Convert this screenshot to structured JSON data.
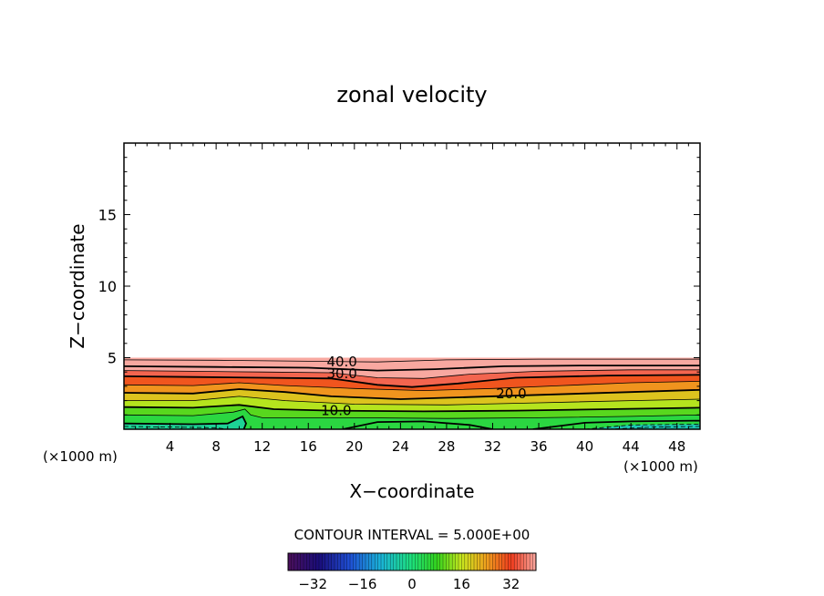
{
  "chart_data": {
    "type": "contour",
    "title": "zonal velocity",
    "xlabel": "X−coordinate",
    "ylabel": "Z−coordinate",
    "x_unit_label": "(×1000 m)",
    "y_unit_label": "(×1000 m)",
    "xlim": [
      0,
      50
    ],
    "ylim": [
      0,
      20
    ],
    "x_ticks": [
      4,
      8,
      12,
      16,
      20,
      24,
      28,
      32,
      36,
      40,
      44,
      48
    ],
    "y_ticks": [
      5,
      10,
      15
    ],
    "grid": false,
    "contour_interval_text": "CONTOUR INTERVAL = 5.000E+00",
    "contour_labels": [
      {
        "text": "40.0",
        "x": 17.6,
        "z": 4.7
      },
      {
        "text": "30.0",
        "x": 17.6,
        "z": 3.9
      },
      {
        "text": "20.0",
        "x": 32.3,
        "z": 2.5
      },
      {
        "text": "10.0",
        "x": 17.1,
        "z": 1.3
      }
    ],
    "contour_levels": [
      {
        "value": 45,
        "points": [
          [
            0,
            4.85
          ],
          [
            8,
            4.82
          ],
          [
            16,
            4.75
          ],
          [
            22,
            4.7
          ],
          [
            28,
            4.85
          ],
          [
            36,
            4.9
          ],
          [
            44,
            4.9
          ],
          [
            50,
            4.9
          ]
        ]
      },
      {
        "value": 40,
        "points": [
          [
            0,
            4.4
          ],
          [
            8,
            4.35
          ],
          [
            16,
            4.3
          ],
          [
            22,
            4.1
          ],
          [
            27,
            4.2
          ],
          [
            33,
            4.4
          ],
          [
            40,
            4.45
          ],
          [
            50,
            4.45
          ]
        ]
      },
      {
        "value": 35,
        "points": [
          [
            0,
            4.1
          ],
          [
            6,
            4.05
          ],
          [
            12,
            4.0
          ],
          [
            18,
            3.95
          ],
          [
            22,
            3.6
          ],
          [
            26,
            3.55
          ],
          [
            30,
            3.85
          ],
          [
            36,
            4.05
          ],
          [
            44,
            4.15
          ],
          [
            50,
            4.15
          ]
        ]
      },
      {
        "value": 30,
        "points": [
          [
            0,
            3.7
          ],
          [
            6,
            3.65
          ],
          [
            12,
            3.6
          ],
          [
            18,
            3.55
          ],
          [
            22,
            3.1
          ],
          [
            25,
            2.95
          ],
          [
            29,
            3.2
          ],
          [
            34,
            3.6
          ],
          [
            42,
            3.75
          ],
          [
            50,
            3.8
          ]
        ]
      },
      {
        "value": 25,
        "points": [
          [
            0,
            3.1
          ],
          [
            6,
            3.05
          ],
          [
            10,
            3.25
          ],
          [
            14,
            3.05
          ],
          [
            20,
            2.85
          ],
          [
            26,
            2.7
          ],
          [
            32,
            2.85
          ],
          [
            38,
            3.05
          ],
          [
            44,
            3.25
          ],
          [
            50,
            3.35
          ]
        ]
      },
      {
        "value": 20,
        "points": [
          [
            0,
            2.55
          ],
          [
            6,
            2.5
          ],
          [
            10,
            2.8
          ],
          [
            14,
            2.6
          ],
          [
            18,
            2.3
          ],
          [
            24,
            2.1
          ],
          [
            30,
            2.25
          ],
          [
            36,
            2.4
          ],
          [
            44,
            2.6
          ],
          [
            50,
            2.75
          ]
        ]
      },
      {
        "value": 15,
        "points": [
          [
            0,
            2.0
          ],
          [
            6,
            2.0
          ],
          [
            10,
            2.3
          ],
          [
            14,
            2.0
          ],
          [
            20,
            1.75
          ],
          [
            28,
            1.7
          ],
          [
            36,
            1.85
          ],
          [
            44,
            2.0
          ],
          [
            50,
            2.1
          ]
        ]
      },
      {
        "value": 10,
        "points": [
          [
            0,
            1.55
          ],
          [
            6,
            1.5
          ],
          [
            10,
            1.7
          ],
          [
            13,
            1.4
          ],
          [
            18,
            1.3
          ],
          [
            26,
            1.25
          ],
          [
            34,
            1.3
          ],
          [
            42,
            1.4
          ],
          [
            50,
            1.5
          ]
        ]
      },
      {
        "value": 5,
        "points": [
          [
            0,
            1.0
          ],
          [
            6,
            0.95
          ],
          [
            9.5,
            1.2
          ],
          [
            10.5,
            1.4
          ],
          [
            11,
            1.0
          ],
          [
            12,
            0.8
          ],
          [
            20,
            0.8
          ],
          [
            28,
            0.75
          ],
          [
            36,
            0.8
          ],
          [
            44,
            0.9
          ],
          [
            50,
            1.0
          ]
        ]
      },
      {
        "value": 0,
        "points": [
          [
            0,
            0.4
          ],
          [
            6,
            0.35
          ],
          [
            9,
            0.4
          ],
          [
            10.3,
            0.9
          ],
          [
            10.6,
            0.4
          ],
          [
            10.4,
            0
          ]
        ]
      },
      {
        "value": 0,
        "points": [
          [
            19,
            0
          ],
          [
            22,
            0.5
          ],
          [
            26,
            0.55
          ],
          [
            30,
            0.3
          ],
          [
            32,
            0
          ]
        ]
      },
      {
        "value": 0,
        "points": [
          [
            35.5,
            0
          ],
          [
            40,
            0.45
          ],
          [
            44,
            0.55
          ],
          [
            50,
            0.6
          ]
        ]
      }
    ],
    "negative_contours": [
      {
        "value": -5,
        "points": [
          [
            0,
            0.2
          ],
          [
            4,
            0.15
          ],
          [
            8,
            0.1
          ],
          [
            9,
            0
          ]
        ]
      },
      {
        "value": -5,
        "points": [
          [
            40,
            0
          ],
          [
            44,
            0.3
          ],
          [
            50,
            0.35
          ]
        ]
      },
      {
        "value": -5,
        "points": [
          [
            42,
            0
          ],
          [
            46,
            0.15
          ],
          [
            50,
            0.2
          ]
        ]
      }
    ],
    "colorbar": {
      "min": -40,
      "max": 40,
      "interval": 5,
      "tick_labels": [
        "−32",
        "−16",
        "0",
        "16",
        "32"
      ],
      "tick_values": [
        -32,
        -16,
        0,
        16,
        32
      ]
    }
  }
}
